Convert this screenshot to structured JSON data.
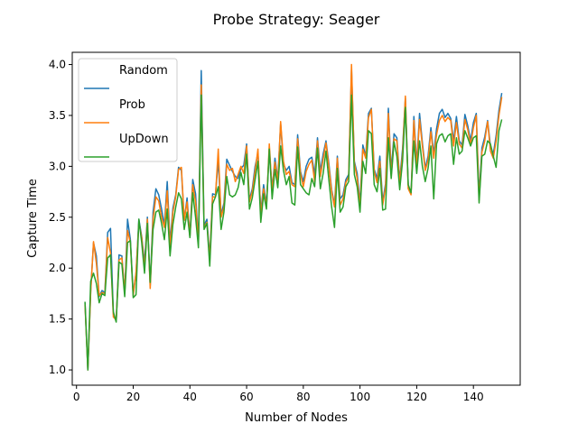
{
  "chart_data": {
    "type": "line",
    "title": "Probe Strategy: Seager",
    "xlabel": "Number of Nodes",
    "ylabel": "Capture Time",
    "xlim": [
      -1.5,
      156.5
    ],
    "ylim": [
      0.85,
      4.12
    ],
    "xticks": [
      0,
      20,
      40,
      60,
      80,
      100,
      120,
      140
    ],
    "yticks": [
      1.0,
      1.5,
      2.0,
      2.5,
      3.0,
      3.5,
      4.0
    ],
    "ytick_labels": [
      "1.0",
      "1.5",
      "2.0",
      "2.5",
      "3.0",
      "3.5",
      "4.0"
    ],
    "grid": false,
    "legend_position": "top-left",
    "x": [
      3,
      4,
      5,
      6,
      7,
      8,
      9,
      10,
      11,
      12,
      13,
      14,
      15,
      16,
      17,
      18,
      19,
      20,
      21,
      22,
      23,
      24,
      25,
      26,
      27,
      28,
      29,
      30,
      31,
      32,
      33,
      34,
      35,
      36,
      37,
      38,
      39,
      40,
      41,
      42,
      43,
      44,
      45,
      46,
      47,
      48,
      49,
      50,
      51,
      52,
      53,
      54,
      55,
      56,
      57,
      58,
      59,
      60,
      61,
      62,
      63,
      64,
      65,
      66,
      67,
      68,
      69,
      70,
      71,
      72,
      73,
      74,
      75,
      76,
      77,
      78,
      79,
      80,
      81,
      82,
      83,
      84,
      85,
      86,
      87,
      88,
      89,
      90,
      91,
      92,
      93,
      94,
      95,
      96,
      97,
      98,
      99,
      100,
      101,
      102,
      103,
      104,
      105,
      106,
      107,
      108,
      109,
      110,
      111,
      112,
      113,
      114,
      115,
      116,
      117,
      118,
      119,
      120,
      121,
      122,
      123,
      124,
      125,
      126,
      127,
      128,
      129,
      130,
      131,
      132,
      133,
      134,
      135,
      136,
      137,
      138,
      139,
      140,
      141,
      142,
      143,
      144,
      145,
      146,
      147,
      148,
      149,
      150
    ],
    "series": [
      {
        "name": "Random",
        "color": "#1f77b4",
        "values": [
          1.66,
          1.0,
          1.78,
          2.25,
          2.12,
          1.72,
          1.78,
          1.76,
          2.35,
          2.39,
          1.55,
          1.48,
          2.13,
          2.12,
          1.75,
          2.48,
          2.28,
          1.75,
          1.95,
          2.48,
          2.31,
          2.05,
          2.5,
          1.83,
          2.55,
          2.78,
          2.72,
          2.58,
          2.42,
          2.85,
          2.25,
          2.59,
          2.72,
          2.99,
          2.96,
          2.47,
          2.69,
          2.31,
          2.87,
          2.73,
          2.25,
          3.94,
          2.42,
          2.48,
          2.1,
          2.73,
          2.72,
          3.06,
          2.52,
          2.64,
          3.07,
          3.01,
          2.95,
          2.9,
          2.88,
          2.98,
          3.01,
          3.22,
          2.67,
          2.78,
          3.0,
          3.13,
          2.55,
          2.82,
          2.62,
          3.17,
          2.77,
          3.08,
          2.87,
          3.42,
          3.02,
          2.96,
          3.0,
          2.84,
          2.82,
          3.31,
          2.95,
          2.85,
          3.0,
          3.07,
          3.09,
          2.92,
          3.28,
          2.95,
          3.12,
          3.25,
          3.03,
          2.77,
          2.62,
          3.1,
          2.68,
          2.72,
          2.87,
          2.92,
          3.95,
          3.05,
          2.93,
          2.64,
          3.21,
          3.1,
          3.52,
          3.57,
          2.97,
          2.88,
          3.1,
          2.65,
          2.83,
          3.57,
          2.95,
          3.32,
          3.28,
          2.86,
          3.17,
          3.67,
          2.82,
          2.73,
          3.49,
          3.02,
          3.52,
          3.23,
          2.98,
          3.1,
          3.38,
          3.12,
          3.37,
          3.52,
          3.56,
          3.48,
          3.52,
          3.47,
          3.25,
          3.49,
          3.25,
          3.21,
          3.51,
          3.4,
          3.25,
          3.43,
          3.52,
          2.72,
          3.18,
          3.29,
          3.45,
          3.2,
          3.12,
          3.3,
          3.55,
          3.72
        ]
      },
      {
        "name": "Prob",
        "color": "#ff7f0e",
        "values": [
          1.64,
          1.0,
          1.76,
          2.26,
          2.05,
          1.73,
          1.76,
          1.75,
          2.3,
          2.15,
          1.52,
          1.49,
          2.08,
          2.1,
          1.76,
          2.37,
          2.25,
          1.73,
          1.96,
          2.45,
          2.3,
          2.0,
          2.48,
          1.8,
          2.48,
          2.7,
          2.66,
          2.5,
          2.4,
          2.76,
          2.2,
          2.55,
          2.7,
          2.97,
          2.99,
          2.47,
          2.65,
          2.31,
          2.82,
          2.65,
          2.24,
          3.8,
          2.4,
          2.45,
          2.08,
          2.7,
          2.7,
          3.17,
          2.5,
          2.6,
          3.02,
          2.96,
          2.98,
          2.85,
          2.92,
          3.0,
          2.93,
          3.2,
          2.65,
          2.75,
          2.95,
          3.17,
          2.52,
          2.78,
          2.6,
          3.22,
          2.75,
          3.04,
          2.84,
          3.44,
          3.05,
          2.92,
          2.95,
          2.82,
          2.8,
          3.27,
          2.93,
          2.8,
          2.95,
          3.02,
          3.06,
          2.85,
          3.25,
          2.9,
          3.07,
          3.23,
          3.0,
          2.75,
          2.6,
          3.08,
          2.62,
          2.68,
          2.84,
          2.9,
          4.0,
          3.03,
          2.88,
          2.6,
          3.17,
          3.08,
          3.48,
          3.56,
          2.95,
          2.84,
          3.05,
          2.62,
          2.79,
          3.52,
          2.91,
          3.27,
          3.25,
          2.83,
          3.12,
          3.69,
          2.78,
          2.72,
          3.45,
          2.98,
          3.46,
          3.2,
          2.96,
          3.06,
          3.34,
          3.08,
          3.31,
          3.45,
          3.5,
          3.44,
          3.48,
          3.45,
          3.2,
          3.43,
          3.22,
          3.18,
          3.46,
          3.36,
          3.21,
          3.38,
          3.5,
          2.67,
          3.14,
          3.25,
          3.44,
          3.15,
          3.08,
          3.25,
          3.5,
          3.68
        ]
      },
      {
        "name": "UpDown",
        "color": "#2ca02c",
        "values": [
          1.67,
          1.0,
          1.87,
          1.95,
          1.85,
          1.66,
          1.75,
          1.73,
          2.1,
          2.13,
          1.57,
          1.47,
          2.06,
          2.04,
          1.72,
          2.25,
          2.27,
          1.71,
          1.74,
          2.48,
          2.25,
          1.95,
          2.44,
          1.86,
          2.38,
          2.55,
          2.57,
          2.44,
          2.28,
          2.58,
          2.12,
          2.43,
          2.6,
          2.74,
          2.68,
          2.38,
          2.55,
          2.3,
          2.74,
          2.5,
          2.2,
          3.7,
          2.38,
          2.44,
          2.02,
          2.63,
          2.7,
          2.8,
          2.38,
          2.55,
          2.9,
          2.72,
          2.7,
          2.72,
          2.79,
          2.94,
          2.82,
          3.12,
          2.58,
          2.69,
          2.87,
          3.05,
          2.45,
          2.73,
          2.58,
          3.17,
          2.68,
          2.97,
          2.79,
          3.2,
          2.96,
          2.82,
          2.9,
          2.64,
          2.62,
          3.19,
          2.82,
          2.78,
          2.74,
          2.72,
          2.88,
          2.8,
          3.18,
          2.78,
          2.93,
          3.15,
          2.87,
          2.6,
          2.4,
          2.98,
          2.55,
          2.6,
          2.8,
          2.85,
          3.7,
          2.92,
          2.8,
          2.55,
          3.05,
          2.93,
          3.35,
          3.32,
          2.82,
          2.75,
          2.98,
          2.57,
          2.58,
          3.28,
          2.88,
          3.24,
          3.1,
          2.77,
          3.05,
          3.58,
          2.82,
          2.74,
          3.25,
          2.93,
          3.25,
          3.0,
          2.85,
          2.98,
          3.2,
          2.68,
          3.22,
          3.3,
          3.32,
          3.24,
          3.3,
          3.32,
          3.02,
          3.28,
          3.12,
          3.15,
          3.35,
          3.28,
          3.2,
          3.28,
          3.3,
          2.64,
          3.1,
          3.12,
          3.25,
          3.22,
          3.1,
          2.99,
          3.35,
          3.46
        ]
      }
    ]
  }
}
